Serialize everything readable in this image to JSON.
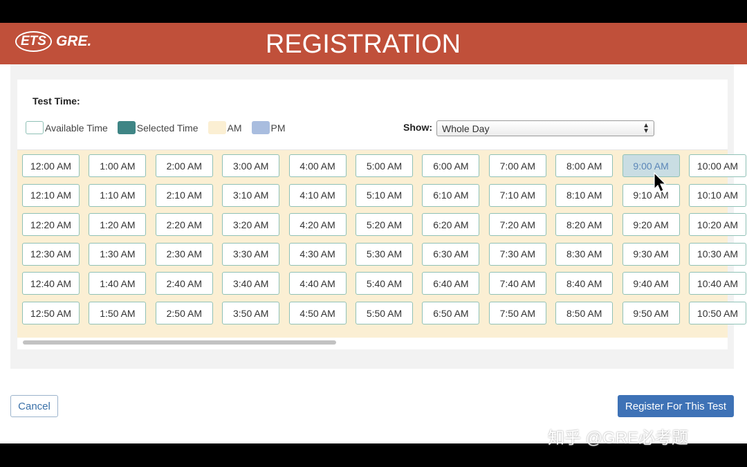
{
  "header": {
    "logo_ets": "ETS",
    "logo_gre": "GRE.",
    "title": "REGISTRATION"
  },
  "test_time": {
    "label": "Test Time:"
  },
  "legend": [
    {
      "label": "Available Time",
      "color": "#ffffff"
    },
    {
      "label": "Selected Time",
      "color": "#3f8585"
    },
    {
      "label": "AM",
      "color": "#fbefd3"
    },
    {
      "label": "PM",
      "color": "#a9bddf"
    }
  ],
  "show": {
    "label": "Show:",
    "value": "Whole Day"
  },
  "hovered_slot": "9:00 AM",
  "time_columns": [
    [
      "12:00 AM",
      "12:10 AM",
      "12:20 AM",
      "12:30 AM",
      "12:40 AM",
      "12:50 AM"
    ],
    [
      "1:00 AM",
      "1:10 AM",
      "1:20 AM",
      "1:30 AM",
      "1:40 AM",
      "1:50 AM"
    ],
    [
      "2:00 AM",
      "2:10 AM",
      "2:20 AM",
      "2:30 AM",
      "2:40 AM",
      "2:50 AM"
    ],
    [
      "3:00 AM",
      "3:10 AM",
      "3:20 AM",
      "3:30 AM",
      "3:40 AM",
      "3:50 AM"
    ],
    [
      "4:00 AM",
      "4:10 AM",
      "4:20 AM",
      "4:30 AM",
      "4:40 AM",
      "4:50 AM"
    ],
    [
      "5:00 AM",
      "5:10 AM",
      "5:20 AM",
      "5:30 AM",
      "5:40 AM",
      "5:50 AM"
    ],
    [
      "6:00 AM",
      "6:10 AM",
      "6:20 AM",
      "6:30 AM",
      "6:40 AM",
      "6:50 AM"
    ],
    [
      "7:00 AM",
      "7:10 AM",
      "7:20 AM",
      "7:30 AM",
      "7:40 AM",
      "7:50 AM"
    ],
    [
      "8:00 AM",
      "8:10 AM",
      "8:20 AM",
      "8:30 AM",
      "8:40 AM",
      "8:50 AM"
    ],
    [
      "9:00 AM",
      "9:10 AM",
      "9:20 AM",
      "9:30 AM",
      "9:40 AM",
      "9:50 AM"
    ],
    [
      "10:00 AM",
      "10:10 AM",
      "10:20 AM",
      "10:30 AM",
      "10:40 AM",
      "10:50 AM"
    ]
  ],
  "buttons": {
    "cancel": "Cancel",
    "register": "Register For This Test"
  },
  "watermark": "知乎 @GRE必考题"
}
